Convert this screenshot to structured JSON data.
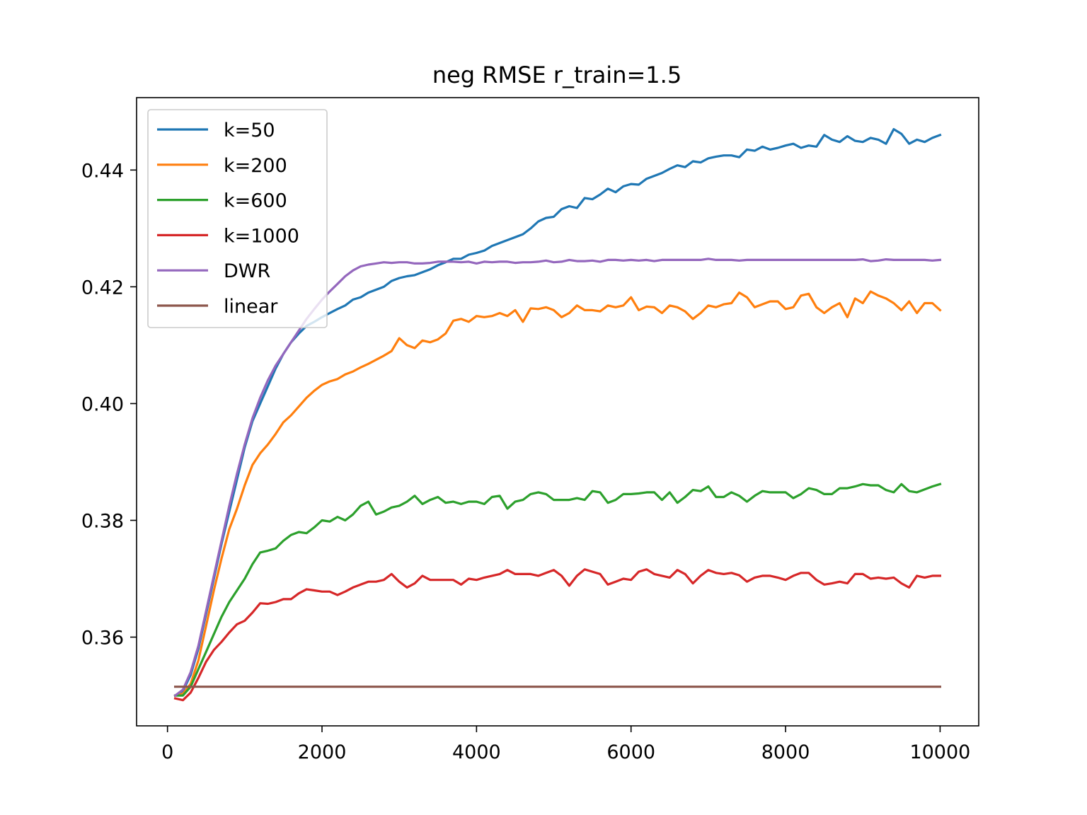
{
  "chart_data": {
    "type": "line",
    "title": "neg RMSE r_train=1.5",
    "xlabel": "",
    "ylabel": "",
    "xlim": [
      -400,
      10500
    ],
    "ylim": [
      0.3448,
      0.4524
    ],
    "xticks": [
      0,
      2000,
      4000,
      6000,
      8000,
      10000
    ],
    "xtick_labels": [
      "0",
      "2000",
      "4000",
      "6000",
      "8000",
      "10000"
    ],
    "yticks": [
      0.36,
      0.38,
      0.4,
      0.42,
      0.44
    ],
    "ytick_labels": [
      "0.36",
      "0.38",
      "0.40",
      "0.42",
      "0.44"
    ],
    "grid": false,
    "legend_position": "upper-left",
    "x": [
      100,
      200,
      300,
      400,
      500,
      600,
      700,
      800,
      900,
      1000,
      1100,
      1200,
      1300,
      1400,
      1500,
      1600,
      1700,
      1800,
      1900,
      2000,
      2100,
      2200,
      2300,
      2400,
      2500,
      2600,
      2700,
      2800,
      2900,
      3000,
      3100,
      3200,
      3300,
      3400,
      3500,
      3600,
      3700,
      3800,
      3900,
      4000,
      4100,
      4200,
      4300,
      4400,
      4500,
      4600,
      4700,
      4800,
      4900,
      5000,
      5100,
      5200,
      5300,
      5400,
      5500,
      5600,
      5700,
      5800,
      5900,
      6000,
      6100,
      6200,
      6300,
      6400,
      6500,
      6600,
      6700,
      6800,
      6900,
      7000,
      7100,
      7200,
      7300,
      7400,
      7500,
      7600,
      7700,
      7800,
      7900,
      8000,
      8100,
      8200,
      8300,
      8400,
      8500,
      8600,
      8700,
      8800,
      8900,
      9000,
      9100,
      9200,
      9300,
      9400,
      9500,
      9600,
      9700,
      9800,
      9900,
      10000
    ],
    "series": [
      {
        "name": "k=50",
        "color": "#1f77b4",
        "values": [
          0.35,
          0.3508,
          0.3535,
          0.358,
          0.364,
          0.37,
          0.376,
          0.3815,
          0.387,
          0.3925,
          0.397,
          0.4,
          0.403,
          0.406,
          0.4085,
          0.4105,
          0.412,
          0.4133,
          0.414,
          0.4148,
          0.4155,
          0.4162,
          0.4168,
          0.4178,
          0.4182,
          0.419,
          0.4195,
          0.42,
          0.421,
          0.4215,
          0.4218,
          0.422,
          0.4225,
          0.423,
          0.4237,
          0.4242,
          0.4248,
          0.4248,
          0.4255,
          0.4258,
          0.4262,
          0.427,
          0.4275,
          0.428,
          0.4285,
          0.429,
          0.43,
          0.4312,
          0.4318,
          0.432,
          0.4333,
          0.4338,
          0.4335,
          0.4352,
          0.435,
          0.4358,
          0.4368,
          0.4362,
          0.4372,
          0.4376,
          0.4375,
          0.4385,
          0.439,
          0.4395,
          0.4402,
          0.4408,
          0.4405,
          0.4415,
          0.4413,
          0.442,
          0.4423,
          0.4425,
          0.4425,
          0.4422,
          0.4435,
          0.4433,
          0.444,
          0.4435,
          0.4438,
          0.4442,
          0.4445,
          0.4438,
          0.4442,
          0.444,
          0.446,
          0.4452,
          0.4448,
          0.4458,
          0.445,
          0.4448,
          0.4455,
          0.4452,
          0.4445,
          0.447,
          0.4462,
          0.4445,
          0.4452,
          0.4448,
          0.4455,
          0.446
        ]
      },
      {
        "name": "k=200",
        "color": "#ff7f0e",
        "values": [
          0.35,
          0.3503,
          0.352,
          0.356,
          0.362,
          0.368,
          0.3735,
          0.3785,
          0.382,
          0.386,
          0.3895,
          0.3915,
          0.393,
          0.3948,
          0.3968,
          0.398,
          0.3995,
          0.401,
          0.4022,
          0.4032,
          0.4038,
          0.4042,
          0.405,
          0.4055,
          0.4062,
          0.4068,
          0.4075,
          0.4082,
          0.409,
          0.4112,
          0.41,
          0.4095,
          0.4108,
          0.4105,
          0.411,
          0.412,
          0.4142,
          0.4145,
          0.414,
          0.415,
          0.4148,
          0.415,
          0.4155,
          0.415,
          0.416,
          0.414,
          0.4163,
          0.4162,
          0.4165,
          0.416,
          0.4148,
          0.4155,
          0.4168,
          0.416,
          0.416,
          0.4158,
          0.4168,
          0.4165,
          0.4168,
          0.4182,
          0.416,
          0.4166,
          0.4165,
          0.4155,
          0.4168,
          0.4165,
          0.4158,
          0.4145,
          0.4155,
          0.4168,
          0.4165,
          0.417,
          0.4172,
          0.419,
          0.4182,
          0.4165,
          0.417,
          0.4175,
          0.4175,
          0.4162,
          0.4165,
          0.4185,
          0.4188,
          0.4165,
          0.4155,
          0.4165,
          0.4172,
          0.4148,
          0.418,
          0.4172,
          0.4192,
          0.4185,
          0.418,
          0.4172,
          0.416,
          0.4175,
          0.4155,
          0.4172,
          0.4172,
          0.416
        ]
      },
      {
        "name": "k=600",
        "color": "#2ca02c",
        "values": [
          0.35,
          0.35,
          0.3515,
          0.3545,
          0.3575,
          0.3605,
          0.3635,
          0.366,
          0.368,
          0.37,
          0.3725,
          0.3745,
          0.3748,
          0.3752,
          0.3765,
          0.3775,
          0.378,
          0.3778,
          0.3788,
          0.38,
          0.3798,
          0.3806,
          0.38,
          0.381,
          0.3825,
          0.3832,
          0.381,
          0.3815,
          0.3822,
          0.3825,
          0.3832,
          0.3842,
          0.3828,
          0.3835,
          0.384,
          0.383,
          0.3832,
          0.3828,
          0.3832,
          0.3832,
          0.3828,
          0.384,
          0.3842,
          0.382,
          0.3832,
          0.3835,
          0.3845,
          0.3848,
          0.3845,
          0.3835,
          0.3835,
          0.3835,
          0.3838,
          0.3835,
          0.385,
          0.3848,
          0.383,
          0.3835,
          0.3845,
          0.3845,
          0.3846,
          0.3848,
          0.3848,
          0.3835,
          0.3848,
          0.383,
          0.384,
          0.3852,
          0.385,
          0.3858,
          0.384,
          0.384,
          0.3848,
          0.3842,
          0.3832,
          0.3842,
          0.385,
          0.3848,
          0.3848,
          0.3848,
          0.3838,
          0.3845,
          0.3855,
          0.3852,
          0.3845,
          0.3845,
          0.3855,
          0.3855,
          0.3858,
          0.3862,
          0.386,
          0.386,
          0.3852,
          0.3848,
          0.3862,
          0.385,
          0.3848,
          0.3853,
          0.3858,
          0.3862
        ]
      },
      {
        "name": "k=1000",
        "color": "#d62728",
        "values": [
          0.3495,
          0.3492,
          0.3505,
          0.353,
          0.3558,
          0.3578,
          0.3592,
          0.3608,
          0.3622,
          0.3628,
          0.3642,
          0.3658,
          0.3657,
          0.366,
          0.3665,
          0.3665,
          0.3675,
          0.3682,
          0.368,
          0.3678,
          0.3678,
          0.3672,
          0.3678,
          0.3685,
          0.369,
          0.3695,
          0.3695,
          0.3698,
          0.3708,
          0.3695,
          0.3685,
          0.3692,
          0.3705,
          0.3698,
          0.3698,
          0.3698,
          0.3698,
          0.369,
          0.37,
          0.3698,
          0.3702,
          0.3705,
          0.3708,
          0.3715,
          0.3708,
          0.3708,
          0.3708,
          0.3705,
          0.371,
          0.3715,
          0.3705,
          0.3688,
          0.3705,
          0.3716,
          0.3712,
          0.3708,
          0.369,
          0.3695,
          0.37,
          0.3698,
          0.3712,
          0.3716,
          0.3708,
          0.3705,
          0.3702,
          0.3715,
          0.3708,
          0.3692,
          0.3705,
          0.3715,
          0.371,
          0.3708,
          0.371,
          0.3706,
          0.3695,
          0.3702,
          0.3705,
          0.3705,
          0.3702,
          0.3698,
          0.3705,
          0.371,
          0.371,
          0.3698,
          0.369,
          0.3692,
          0.3695,
          0.3692,
          0.3708,
          0.3708,
          0.37,
          0.3702,
          0.37,
          0.3702,
          0.3692,
          0.3685,
          0.3705,
          0.3702,
          0.3705,
          0.3705
        ]
      },
      {
        "name": "DWR",
        "color": "#9467bd",
        "values": [
          0.35,
          0.351,
          0.354,
          0.3585,
          0.3645,
          0.3705,
          0.3765,
          0.3825,
          0.388,
          0.393,
          0.3975,
          0.401,
          0.404,
          0.4065,
          0.4085,
          0.4105,
          0.4125,
          0.4145,
          0.4162,
          0.4178,
          0.4192,
          0.4205,
          0.4218,
          0.4228,
          0.4235,
          0.4238,
          0.424,
          0.4242,
          0.4241,
          0.4242,
          0.4242,
          0.424,
          0.424,
          0.4241,
          0.4243,
          0.4243,
          0.4243,
          0.4242,
          0.4243,
          0.424,
          0.4243,
          0.4242,
          0.4243,
          0.4243,
          0.4241,
          0.4242,
          0.4242,
          0.4243,
          0.4245,
          0.4242,
          0.4243,
          0.4246,
          0.4244,
          0.4244,
          0.4245,
          0.4243,
          0.4246,
          0.4246,
          0.4245,
          0.4246,
          0.4245,
          0.4246,
          0.4244,
          0.4246,
          0.4246,
          0.4246,
          0.4246,
          0.4246,
          0.4246,
          0.4248,
          0.4246,
          0.4246,
          0.4246,
          0.4245,
          0.4246,
          0.4246,
          0.4246,
          0.4246,
          0.4246,
          0.4246,
          0.4246,
          0.4246,
          0.4246,
          0.4246,
          0.4246,
          0.4246,
          0.4246,
          0.4246,
          0.4246,
          0.4247,
          0.4244,
          0.4245,
          0.4247,
          0.4246,
          0.4246,
          0.4246,
          0.4246,
          0.4246,
          0.4245,
          0.4246
        ]
      },
      {
        "name": "linear",
        "color": "#8c564b",
        "values": [
          0.3515,
          0.3515,
          0.3515,
          0.3515,
          0.3515,
          0.3515,
          0.3515,
          0.3515,
          0.3515,
          0.3515,
          0.3515,
          0.3515,
          0.3515,
          0.3515,
          0.3515,
          0.3515,
          0.3515,
          0.3515,
          0.3515,
          0.3515,
          0.3515,
          0.3515,
          0.3515,
          0.3515,
          0.3515,
          0.3515,
          0.3515,
          0.3515,
          0.3515,
          0.3515,
          0.3515,
          0.3515,
          0.3515,
          0.3515,
          0.3515,
          0.3515,
          0.3515,
          0.3515,
          0.3515,
          0.3515,
          0.3515,
          0.3515,
          0.3515,
          0.3515,
          0.3515,
          0.3515,
          0.3515,
          0.3515,
          0.3515,
          0.3515,
          0.3515,
          0.3515,
          0.3515,
          0.3515,
          0.3515,
          0.3515,
          0.3515,
          0.3515,
          0.3515,
          0.3515,
          0.3515,
          0.3515,
          0.3515,
          0.3515,
          0.3515,
          0.3515,
          0.3515,
          0.3515,
          0.3515,
          0.3515,
          0.3515,
          0.3515,
          0.3515,
          0.3515,
          0.3515,
          0.3515,
          0.3515,
          0.3515,
          0.3515,
          0.3515,
          0.3515,
          0.3515,
          0.3515,
          0.3515,
          0.3515,
          0.3515,
          0.3515,
          0.3515,
          0.3515,
          0.3515,
          0.3515,
          0.3515,
          0.3515,
          0.3515,
          0.3515,
          0.3515,
          0.3515,
          0.3515,
          0.3515,
          0.3515
        ]
      }
    ]
  }
}
